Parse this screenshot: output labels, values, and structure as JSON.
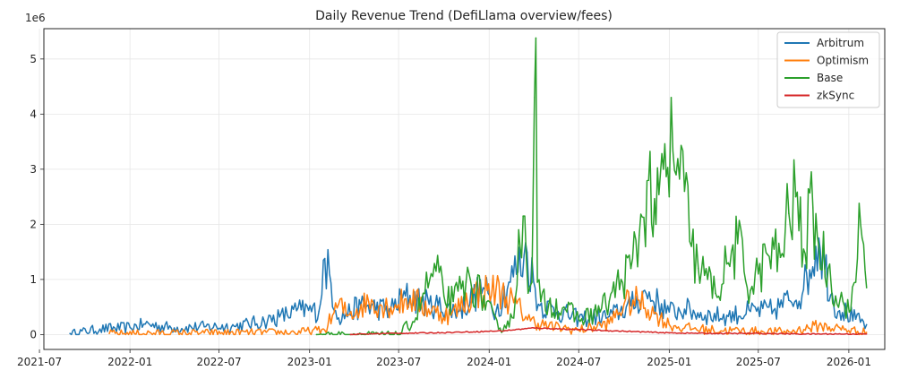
{
  "chart_data": {
    "type": "line",
    "title": "Daily Revenue Trend (DefiLlama overview/fees)",
    "xlabel": "",
    "ylabel": "",
    "y_scale_label": "1e6",
    "ylim": [
      -0.27,
      5.55
    ],
    "yticks": [
      0,
      1,
      2,
      3,
      4,
      5
    ],
    "xlim": [
      "2021-07-10",
      "2026-03-15"
    ],
    "xticks": [
      "2021-07",
      "2022-01",
      "2022-07",
      "2023-01",
      "2023-07",
      "2024-01",
      "2024-07",
      "2025-01",
      "2025-07",
      "2026-01"
    ],
    "grid": true,
    "legend_position": "top-right",
    "series": [
      {
        "name": "Arbitrum",
        "color": "#1f77b4",
        "x": [
          "2021-09-01",
          "2021-11-01",
          "2022-01-01",
          "2022-02-01",
          "2022-04-01",
          "2022-06-01",
          "2022-08-01",
          "2022-10-01",
          "2022-11-01",
          "2022-12-15",
          "2023-01-20",
          "2023-02-01",
          "2023-03-01",
          "2023-04-15",
          "2023-06-15",
          "2023-07-15",
          "2023-09-01",
          "2023-11-01",
          "2023-12-20",
          "2024-01-15",
          "2024-02-10",
          "2024-03-18",
          "2024-04-10",
          "2024-05-20",
          "2024-07-01",
          "2024-09-01",
          "2024-10-15",
          "2024-11-15",
          "2025-01-01",
          "2025-02-01",
          "2025-03-15",
          "2025-05-01",
          "2025-06-15",
          "2025-08-01",
          "2025-09-01",
          "2025-10-01",
          "2025-11-01",
          "2025-12-01",
          "2026-01-15",
          "2026-02-06"
        ],
        "y": [
          0.02,
          0.1,
          0.13,
          0.19,
          0.12,
          0.14,
          0.15,
          0.24,
          0.32,
          0.45,
          0.42,
          1.38,
          0.3,
          0.52,
          0.45,
          0.7,
          0.55,
          0.43,
          0.85,
          0.42,
          0.95,
          1.49,
          0.55,
          0.42,
          0.29,
          0.33,
          0.52,
          0.75,
          0.41,
          0.46,
          0.35,
          0.33,
          0.42,
          0.44,
          0.62,
          0.82,
          1.75,
          0.55,
          0.28,
          0.18
        ]
      },
      {
        "name": "Optimism",
        "color": "#ff7f0e",
        "x": [
          "2021-11-20",
          "2022-06-01",
          "2022-12-01",
          "2023-02-01",
          "2023-03-01",
          "2023-03-20",
          "2023-05-01",
          "2023-06-15",
          "2023-07-25",
          "2023-09-15",
          "2023-10-15",
          "2023-12-01",
          "2024-01-15",
          "2024-02-20",
          "2024-03-25",
          "2024-05-01",
          "2024-07-01",
          "2024-09-01",
          "2024-10-01",
          "2024-11-01",
          "2024-12-01",
          "2025-01-01",
          "2025-02-01",
          "2025-04-01",
          "2025-07-01",
          "2025-09-01",
          "2025-11-01",
          "2026-02-06"
        ],
        "y": [
          0.02,
          0.03,
          0.04,
          0.08,
          0.55,
          0.35,
          0.6,
          0.5,
          0.65,
          0.4,
          0.35,
          0.75,
          0.82,
          0.58,
          0.25,
          0.15,
          0.08,
          0.2,
          0.55,
          0.62,
          0.38,
          0.18,
          0.12,
          0.08,
          0.06,
          0.05,
          0.16,
          0.04
        ]
      },
      {
        "name": "Base",
        "color": "#2ca02c",
        "x": [
          "2023-01-15",
          "2023-07-01",
          "2023-08-05",
          "2023-08-20",
          "2023-09-15",
          "2023-10-01",
          "2023-10-20",
          "2023-11-15",
          "2023-12-15",
          "2024-01-20",
          "2024-02-20",
          "2024-03-01",
          "2024-03-10",
          "2024-03-20",
          "2024-03-28",
          "2024-04-02",
          "2024-04-05",
          "2024-04-08",
          "2024-04-15",
          "2024-05-01",
          "2024-06-01",
          "2024-07-01",
          "2024-08-01",
          "2024-09-01",
          "2024-09-25",
          "2024-10-15",
          "2024-11-01",
          "2024-11-20",
          "2024-12-05",
          "2024-12-20",
          "2025-01-01",
          "2025-01-05",
          "2025-01-15",
          "2025-02-01",
          "2025-02-15",
          "2025-03-01",
          "2025-03-20",
          "2025-04-05",
          "2025-05-01",
          "2025-05-20",
          "2025-06-15",
          "2025-07-01",
          "2025-07-20",
          "2025-08-15",
          "2025-09-01",
          "2025-09-15",
          "2025-10-01",
          "2025-10-20",
          "2025-11-01",
          "2025-11-20",
          "2025-12-05",
          "2025-12-20",
          "2026-01-05",
          "2026-01-15",
          "2026-01-22",
          "2026-01-28",
          "2026-02-06"
        ],
        "y": [
          0.0,
          0.0,
          0.3,
          0.75,
          1.15,
          0.7,
          0.6,
          0.95,
          0.75,
          0.1,
          0.3,
          1.9,
          2.15,
          0.75,
          0.95,
          4.3,
          5.38,
          0.95,
          0.6,
          0.55,
          0.5,
          0.28,
          0.38,
          0.6,
          1.0,
          1.2,
          1.8,
          2.8,
          2.0,
          3.0,
          2.5,
          4.3,
          2.9,
          2.6,
          1.6,
          1.2,
          1.0,
          0.75,
          1.3,
          1.65,
          0.8,
          1.1,
          1.45,
          1.4,
          2.2,
          2.5,
          1.55,
          2.3,
          1.6,
          1.2,
          0.7,
          0.6,
          0.45,
          0.95,
          2.38,
          1.75,
          0.85
        ]
      },
      {
        "name": "zkSync",
        "color": "#d62728",
        "x": [
          "2023-03-25",
          "2023-06-01",
          "2023-09-01",
          "2023-12-01",
          "2024-02-01",
          "2024-04-01",
          "2024-07-01",
          "2024-10-01",
          "2025-01-01",
          "2025-04-01",
          "2025-07-01",
          "2025-10-01",
          "2026-02-06"
        ],
        "y": [
          0.0,
          0.02,
          0.03,
          0.05,
          0.07,
          0.12,
          0.09,
          0.06,
          0.03,
          0.02,
          0.02,
          0.01,
          0.01
        ]
      }
    ]
  }
}
